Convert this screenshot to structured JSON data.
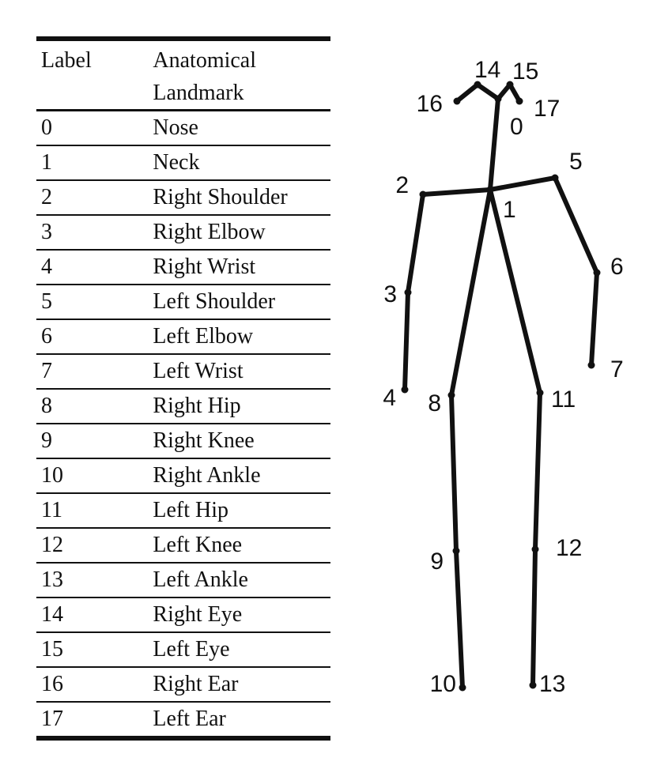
{
  "table": {
    "headers": {
      "label": "Label",
      "landmark_line1": "Anatomical",
      "landmark_line2": "Landmark"
    },
    "rows": [
      {
        "label": "0",
        "landmark": "Nose"
      },
      {
        "label": "1",
        "landmark": "Neck"
      },
      {
        "label": "2",
        "landmark": "Right Shoulder"
      },
      {
        "label": "3",
        "landmark": "Right Elbow"
      },
      {
        "label": "4",
        "landmark": "Right Wrist"
      },
      {
        "label": "5",
        "landmark": "Left Shoulder"
      },
      {
        "label": "6",
        "landmark": "Left Elbow"
      },
      {
        "label": "7",
        "landmark": "Left Wrist"
      },
      {
        "label": "8",
        "landmark": "Right Hip"
      },
      {
        "label": "9",
        "landmark": "Right Knee"
      },
      {
        "label": "10",
        "landmark": "Right Ankle"
      },
      {
        "label": "11",
        "landmark": "Left Hip"
      },
      {
        "label": "12",
        "landmark": "Left Knee"
      },
      {
        "label": "13",
        "landmark": "Left Ankle"
      },
      {
        "label": "14",
        "landmark": "Right Eye"
      },
      {
        "label": "15",
        "landmark": "Left Eye"
      },
      {
        "label": "16",
        "landmark": "Right Ear"
      },
      {
        "label": "17",
        "landmark": "Left Ear"
      }
    ]
  },
  "skeleton": {
    "joint_labels": [
      "0",
      "1",
      "2",
      "3",
      "4",
      "5",
      "6",
      "7",
      "8",
      "9",
      "10",
      "11",
      "12",
      "13",
      "14",
      "15",
      "16",
      "17"
    ],
    "connections": [
      [
        "16",
        "14"
      ],
      [
        "14",
        "0"
      ],
      [
        "0",
        "15"
      ],
      [
        "15",
        "17"
      ],
      [
        "0",
        "1"
      ],
      [
        "1",
        "2"
      ],
      [
        "2",
        "3"
      ],
      [
        "3",
        "4"
      ],
      [
        "1",
        "5"
      ],
      [
        "5",
        "6"
      ],
      [
        "6",
        "7"
      ],
      [
        "1",
        "8"
      ],
      [
        "8",
        "9"
      ],
      [
        "9",
        "10"
      ],
      [
        "1",
        "11"
      ],
      [
        "11",
        "12"
      ],
      [
        "12",
        "13"
      ]
    ]
  }
}
